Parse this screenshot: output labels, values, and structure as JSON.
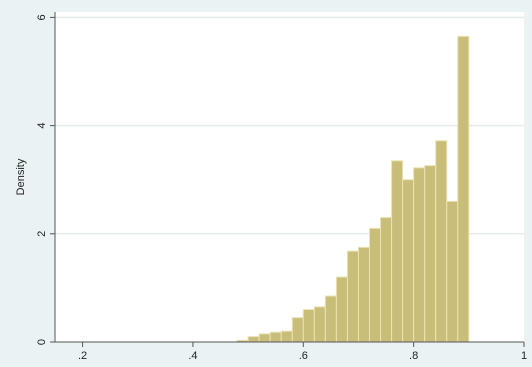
{
  "chart_data": {
    "type": "bar",
    "subtype": "histogram",
    "ylabel": "Density",
    "xlabel": "",
    "xlim": [
      0.15,
      1.0
    ],
    "ylim": [
      0,
      6.1
    ],
    "x_ticks": [
      0.2,
      0.4,
      0.6,
      0.8,
      1.0
    ],
    "x_tick_labels": [
      ".2",
      ".4",
      ".6",
      ".8",
      "1"
    ],
    "y_ticks": [
      0,
      2,
      4,
      6
    ],
    "y_tick_labels": [
      "0",
      "2",
      "4",
      "6"
    ],
    "grid": "horizontal",
    "bin_width": 0.02,
    "bins": [
      {
        "x0": 0.48,
        "x1": 0.5,
        "value": 0.03
      },
      {
        "x0": 0.5,
        "x1": 0.52,
        "value": 0.1
      },
      {
        "x0": 0.52,
        "x1": 0.54,
        "value": 0.15
      },
      {
        "x0": 0.54,
        "x1": 0.56,
        "value": 0.18
      },
      {
        "x0": 0.56,
        "x1": 0.58,
        "value": 0.2
      },
      {
        "x0": 0.58,
        "x1": 0.6,
        "value": 0.45
      },
      {
        "x0": 0.6,
        "x1": 0.62,
        "value": 0.6
      },
      {
        "x0": 0.62,
        "x1": 0.64,
        "value": 0.65
      },
      {
        "x0": 0.64,
        "x1": 0.66,
        "value": 0.85
      },
      {
        "x0": 0.66,
        "x1": 0.68,
        "value": 1.2
      },
      {
        "x0": 0.68,
        "x1": 0.7,
        "value": 1.68
      },
      {
        "x0": 0.7,
        "x1": 0.72,
        "value": 1.75
      },
      {
        "x0": 0.72,
        "x1": 0.74,
        "value": 2.1
      },
      {
        "x0": 0.74,
        "x1": 0.76,
        "value": 2.3
      },
      {
        "x0": 0.76,
        "x1": 0.78,
        "value": 3.35
      },
      {
        "x0": 0.78,
        "x1": 0.8,
        "value": 3.0
      },
      {
        "x0": 0.8,
        "x1": 0.82,
        "value": 3.22
      },
      {
        "x0": 0.82,
        "x1": 0.84,
        "value": 3.26
      },
      {
        "x0": 0.84,
        "x1": 0.86,
        "value": 3.72
      },
      {
        "x0": 0.86,
        "x1": 0.88,
        "value": 2.6
      },
      {
        "x0": 0.88,
        "x1": 0.9,
        "value": 5.65
      }
    ],
    "colors": {
      "bar_fill": "#c9bd7a",
      "bar_stroke": "#ebe3b3",
      "plot_background": "#ffffff",
      "page_background": "#eaf2f3",
      "grid": "#e4ecec",
      "axis": "#555555"
    }
  }
}
